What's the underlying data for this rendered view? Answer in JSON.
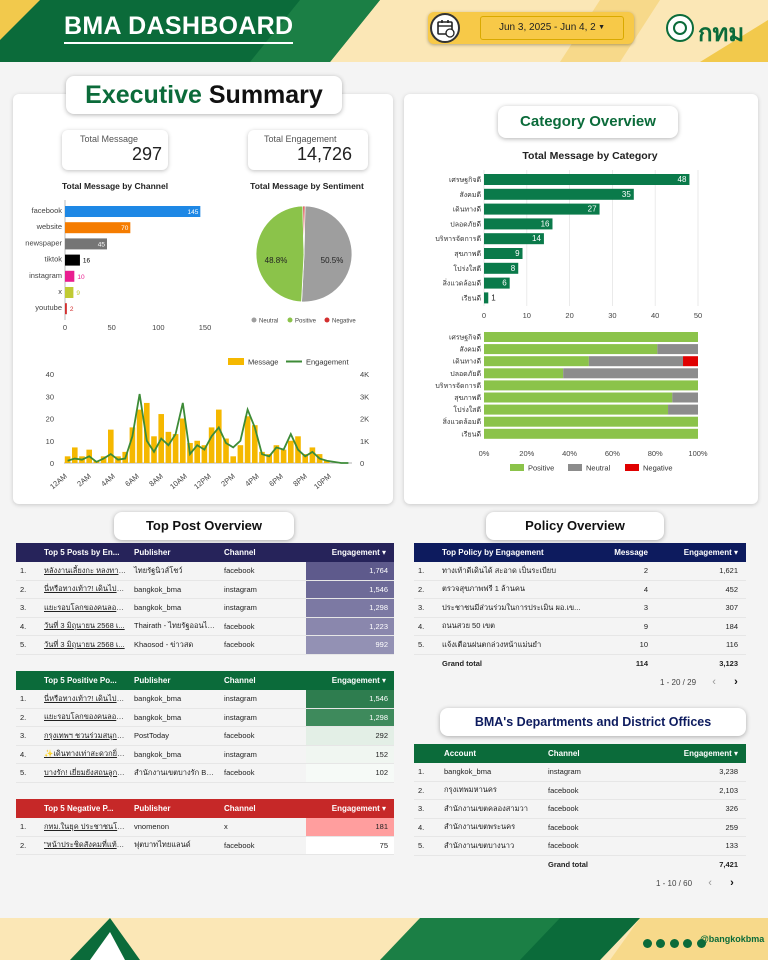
{
  "header": {
    "title": "BMA DASHBOARD",
    "date_range": "Jun 3, 2025 - Jun 4, 2",
    "logo_text": "กทม"
  },
  "footer": {
    "handle": "@bangkokbma"
  },
  "executive": {
    "title_part1": "Executive",
    "title_part2": "Summary",
    "total_message_label": "Total Message",
    "total_message_value": "297",
    "total_engagement_label": "Total Engagement",
    "total_engagement_value": "14,726"
  },
  "channel_chart": {
    "title": "Total Message by Channel",
    "type": "bar",
    "categories": [
      "facebook",
      "website",
      "newspaper",
      "tiktok",
      "instagram",
      "x",
      "youtube"
    ],
    "values": [
      145,
      70,
      45,
      16,
      10,
      9,
      2
    ],
    "colors": [
      "#1e88e5",
      "#f57c00",
      "#757575",
      "#000000",
      "#e91e90",
      "#c0ca33",
      "#d32f2f"
    ],
    "xticks": [
      "0",
      "50",
      "100",
      "150"
    ],
    "xlim": [
      0,
      150
    ]
  },
  "sentiment_chart": {
    "title": "Total Message by Sentiment",
    "type": "pie",
    "slices": [
      {
        "label": "Neutral",
        "value": 50.5,
        "color": "#9e9e9e"
      },
      {
        "label": "Positive",
        "value": 48.8,
        "color": "#8bc34a"
      },
      {
        "label": "Negative",
        "value": 0.7,
        "color": "#d32f2f"
      }
    ],
    "label_neutral": "50.5%",
    "label_positive": "48.8%",
    "legend": [
      "Neutral",
      "Positive",
      "Negative"
    ]
  },
  "chart_data": [
    {
      "type": "bar",
      "title": "Total Message by Channel",
      "categories": [
        "facebook",
        "website",
        "newspaper",
        "tiktok",
        "instagram",
        "x",
        "youtube"
      ],
      "values": [
        145,
        70,
        45,
        16,
        10,
        9,
        2
      ],
      "xlim": [
        0,
        150
      ]
    },
    {
      "type": "pie",
      "title": "Total Message by Sentiment",
      "categories": [
        "Neutral",
        "Positive",
        "Negative"
      ],
      "values": [
        50.5,
        48.8,
        0.7
      ]
    },
    {
      "type": "bar",
      "legend": [
        "Message",
        "Engagement"
      ],
      "x_ticks": [
        "12AM",
        "2AM",
        "4AM",
        "6AM",
        "8AM",
        "10AM",
        "12PM",
        "2PM",
        "4PM",
        "6PM",
        "8PM",
        "10PM"
      ],
      "left_ticks": [
        "0",
        "10",
        "20",
        "30",
        "40"
      ],
      "right_ticks": [
        "0",
        "1K",
        "2K",
        "3K",
        "4K"
      ],
      "ylim": [
        0,
        40
      ],
      "y2lim": [
        0,
        4000
      ],
      "series": [
        {
          "name": "Message",
          "values": [
            3,
            7,
            3,
            6,
            1,
            3,
            15,
            3,
            5,
            16,
            24,
            27,
            12,
            22,
            14,
            13,
            20,
            9,
            10,
            8,
            16,
            24,
            11,
            3,
            8,
            21,
            17,
            5,
            4,
            8,
            6,
            10,
            12,
            4,
            7,
            4,
            1,
            0,
            0,
            0
          ]
        },
        {
          "name": "Engagement",
          "values": [
            100,
            200,
            150,
            300,
            50,
            200,
            400,
            150,
            200,
            1200,
            3100,
            1000,
            500,
            1100,
            800,
            1300,
            2700,
            400,
            800,
            600,
            1200,
            1600,
            900,
            700,
            1000,
            2400,
            1600,
            400,
            300,
            700,
            600,
            1300,
            600,
            300,
            500,
            200,
            100,
            50,
            0,
            0
          ]
        }
      ]
    },
    {
      "type": "bar",
      "title": "Total Message by Category",
      "categories": [
        "เศรษฐกิจดี",
        "สังคมดี",
        "เดินทางดี",
        "ปลอดภัยดี",
        "บริหารจัดการดี",
        "สุขภาพดี",
        "โปร่งใสดี",
        "สิ่งแวดล้อมดี",
        "เรียนดี"
      ],
      "values": [
        48,
        35,
        27,
        16,
        14,
        9,
        8,
        6,
        1
      ],
      "xlim": [
        0,
        50
      ]
    },
    {
      "type": "bar",
      "categories": [
        "เศรษฐกิจดี",
        "สังคมดี",
        "เดินทางดี",
        "ปลอดภัยดี",
        "บริหารจัดการดี",
        "สุขภาพดี",
        "โปร่งใสดี",
        "สิ่งแวดล้อมดี",
        "เรียนดี"
      ],
      "series": [
        {
          "name": "Positive",
          "values": [
            100,
            81,
            49,
            37,
            100,
            88,
            86,
            100,
            100
          ]
        },
        {
          "name": "Neutral",
          "values": [
            0,
            19,
            44,
            63,
            0,
            12,
            14,
            0,
            0
          ]
        },
        {
          "name": "Negative",
          "values": [
            0,
            0,
            7,
            0,
            0,
            0,
            0,
            0,
            0
          ]
        }
      ]
    }
  ],
  "hourly_chart": {
    "legend_message": "Message",
    "legend_engagement": "Engagement",
    "x_ticks": [
      "12AM",
      "2AM",
      "4AM",
      "6AM",
      "8AM",
      "10AM",
      "12PM",
      "2PM",
      "4PM",
      "6PM",
      "8PM",
      "10PM"
    ],
    "left_ticks": [
      "0",
      "10",
      "20",
      "30",
      "40"
    ],
    "right_ticks": [
      "0",
      "1K",
      "2K",
      "3K",
      "4K"
    ],
    "message": [
      3,
      7,
      3,
      6,
      1,
      3,
      15,
      3,
      5,
      16,
      24,
      27,
      12,
      22,
      14,
      13,
      20,
      9,
      10,
      8,
      16,
      24,
      11,
      3,
      8,
      21,
      17,
      5,
      4,
      8,
      6,
      10,
      12,
      4,
      7,
      4,
      1,
      0,
      0,
      0
    ],
    "engagement": [
      100,
      200,
      150,
      300,
      50,
      200,
      400,
      150,
      200,
      1200,
      3100,
      1000,
      500,
      1100,
      800,
      1300,
      2700,
      400,
      800,
      600,
      1200,
      1600,
      900,
      700,
      1000,
      2400,
      1600,
      400,
      300,
      700,
      600,
      1300,
      600,
      300,
      500,
      200,
      100,
      50,
      0,
      0
    ],
    "bar_color": "#f5b800",
    "line_color": "#3d8b37"
  },
  "category": {
    "title": "Category Overview",
    "chart_title": "Total Message by Category",
    "categories": [
      "เศรษฐกิจดี",
      "สังคมดี",
      "เดินทางดี",
      "ปลอดภัยดี",
      "บริหารจัดการดี",
      "สุขภาพดี",
      "โปร่งใสดี",
      "สิ่งแวดล้อมดี",
      "เรียนดี"
    ],
    "values": [
      48,
      35,
      27,
      16,
      14,
      9,
      8,
      6,
      1
    ],
    "xticks": [
      "0",
      "10",
      "20",
      "30",
      "40",
      "50"
    ],
    "positive": [
      100,
      81,
      49,
      37,
      100,
      88,
      86,
      100,
      100
    ],
    "neutral": [
      0,
      19,
      44,
      63,
      0,
      12,
      14,
      0,
      0
    ],
    "negative": [
      0,
      0,
      7,
      0,
      0,
      0,
      0,
      0,
      0
    ],
    "pct_ticks": [
      "0%",
      "20%",
      "40%",
      "60%",
      "80%",
      "100%"
    ],
    "legend": [
      "Positive",
      "Neutral",
      "Negative"
    ],
    "bar_color": "#0a7a4a"
  },
  "top_post": {
    "title": "Top Post Overview",
    "headers": [
      "Top 5 Posts by En...",
      "Publisher",
      "Channel",
      "Engagement ▾"
    ],
    "rows": [
      [
        "1.",
        "หลังงานเลี้ยงกะ หลงทางเก...",
        "ไทยรัฐนิวส์โชว์",
        "facebook",
        "1,764"
      ],
      [
        "2.",
        "นี่หรือทางเท้า?! เดินไปที่แ...",
        "bangkok_bma",
        "instagram",
        "1,546"
      ],
      [
        "3.",
        "แยะรอบโลกของคนลอนตัว...",
        "bangkok_bma",
        "instagram",
        "1,298"
      ],
      [
        "4.",
        "วันที่ 3 มิถุนายน 2568 เ...",
        "Thairath - ไทยรัฐออนไลน์",
        "facebook",
        "1,223"
      ],
      [
        "5.",
        "วันที่ 3 มิถุนายน 2568 เ...",
        "Khaosod - ข่าวสด",
        "facebook",
        "992"
      ]
    ]
  },
  "positive_post": {
    "headers": [
      "Top 5 Positive Po...",
      "Publisher",
      "Channel",
      "Engagement ▾"
    ],
    "rows": [
      [
        "1.",
        "นี่หรือทางเท้า?! เดินไปที่แ...",
        "bangkok_bma",
        "instagram",
        "1,546"
      ],
      [
        "2.",
        "แยะรอบโลกของคนลอนตัว...",
        "bangkok_bma",
        "instagram",
        "1,298"
      ],
      [
        "3.",
        "กรุงเทพฯ ชวนร่วมสนุก ลุ้...",
        "PostToday",
        "facebook",
        "292"
      ],
      [
        "4.",
        "✨เดินทางเท่าสะดวกยิ่ง...",
        "bangkok_bma",
        "instagram",
        "152"
      ],
      [
        "5.",
        "บางรัก! เยี่ยมยังสถนลูกผู...",
        "สำนักงานเขตบางรัก Ban...",
        "facebook",
        "102"
      ]
    ]
  },
  "negative_post": {
    "headers": [
      "Top 5 Negative P...",
      "Publisher",
      "Channel",
      "Engagement ▾"
    ],
    "rows": [
      [
        "1.",
        "กทม.ในยุค ประชาชนโกย ...",
        "vnomenon",
        "x",
        "181"
      ],
      [
        "2.",
        "\"หน้าประชิดสังคมที่แท้ 7 เ...",
        "ฟุตบาทไทยแลนด์",
        "facebook",
        "75"
      ]
    ]
  },
  "policy": {
    "title": "Policy Overview",
    "headers": [
      "Top Policy by Engagement",
      "Message",
      "Engagement ▾"
    ],
    "rows": [
      [
        "1.",
        "ทางเท้าดีเดินได้ สะอาด เป็นระเบียบ",
        "2",
        "1,621"
      ],
      [
        "2.",
        "ตรวจสุขภาพฟรี 1 ล้านคน",
        "4",
        "452"
      ],
      [
        "3.",
        "ประชาชนมีส่วนร่วมในการประเมิน ผอ.เข...",
        "3",
        "307"
      ],
      [
        "4.",
        "ถนนสวย 50 เขต",
        "9",
        "184"
      ],
      [
        "5.",
        "แจ้งเตือนฝนตกล่วงหน้าแม่นยำ",
        "10",
        "116"
      ]
    ],
    "grand_label": "Grand total",
    "grand_message": "114",
    "grand_engagement": "3,123",
    "pager": "1 - 20 / 29"
  },
  "departments": {
    "title": "BMA's Departments and District Offices",
    "headers": [
      "Account",
      "Channel",
      "Engagement ▾"
    ],
    "rows": [
      [
        "1.",
        "bangkok_bma",
        "instagram",
        "3,238"
      ],
      [
        "2.",
        "กรุงเทพมหานคร",
        "facebook",
        "2,103"
      ],
      [
        "3.",
        "สำนักงานเขตคลองสามวา",
        "facebook",
        "326"
      ],
      [
        "4.",
        "สำนักงานเขตพระนคร",
        "facebook",
        "259"
      ],
      [
        "5.",
        "สำนักงานเขตบางนาว",
        "facebook",
        "133"
      ]
    ],
    "grand_label": "Grand total",
    "grand_engagement": "7,421",
    "pager": "1 - 10 / 60"
  }
}
